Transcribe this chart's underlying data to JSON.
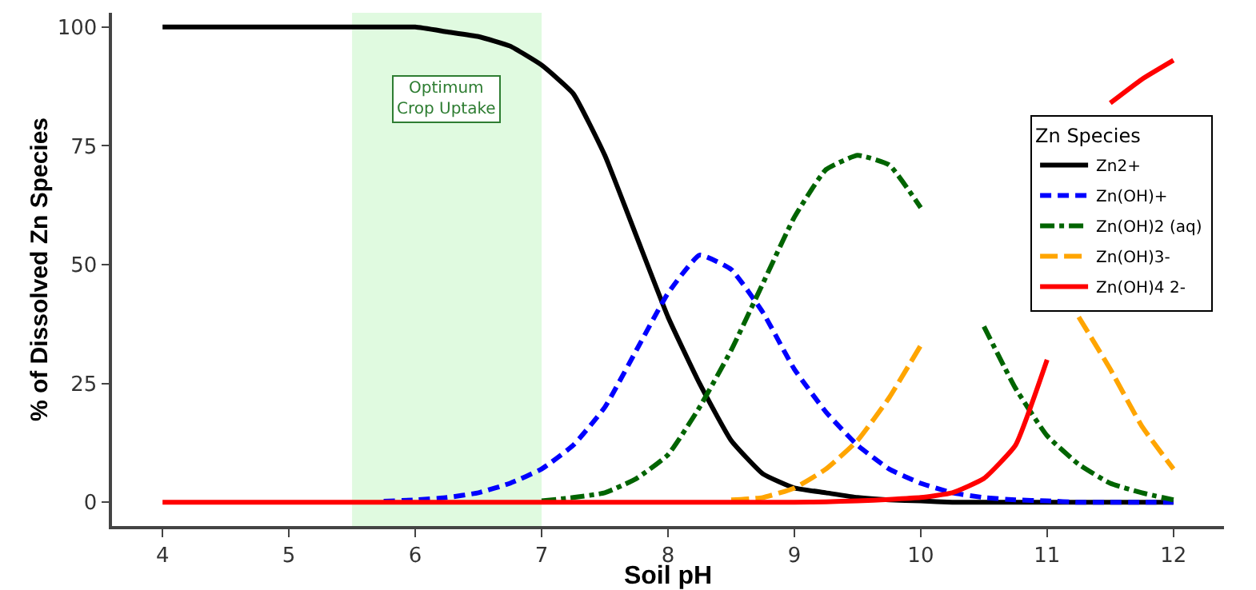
{
  "chart_data": {
    "type": "line",
    "xlabel": "Soil pH",
    "ylabel": "% of Dissolved Zn Species",
    "legend_title": "Zn Species",
    "legend": "top right",
    "grid": false,
    "x": [
      4,
      4.25,
      4.5,
      4.75,
      5,
      5.25,
      5.5,
      5.75,
      6,
      6.25,
      6.5,
      6.75,
      7,
      7.25,
      7.5,
      7.75,
      8,
      8.25,
      8.5,
      8.75,
      9,
      9.25,
      9.5,
      9.75,
      10,
      10.25,
      10.5,
      10.75,
      11,
      11.25,
      11.5,
      11.75,
      12
    ],
    "xlim": [
      3.6,
      12.4
    ],
    "xticks": [
      4,
      5,
      6,
      7,
      8,
      9,
      10,
      11,
      12
    ],
    "ylim": [
      -5,
      103
    ],
    "yticks": [
      0,
      25,
      50,
      75,
      100
    ],
    "bands": [
      {
        "axis": "x",
        "from": 5.5,
        "to": 7,
        "label": "Optimum\nCrop Uptake",
        "color": "#e0fae0"
      }
    ],
    "series": [
      {
        "name": "Zn2+",
        "color": "#000000",
        "line_style": "solid",
        "values": [
          100,
          100,
          100,
          100,
          100,
          100,
          100,
          100,
          100,
          99,
          98,
          96,
          92,
          86,
          73,
          56,
          39,
          25,
          13,
          6,
          3,
          2,
          1,
          0.5,
          0.3,
          0,
          0,
          0,
          0,
          0,
          0,
          0,
          0
        ]
      },
      {
        "name": "Zn(OH)+",
        "color": "#0000ff",
        "line_style": "dash",
        "values": [
          null,
          null,
          null,
          null,
          null,
          null,
          null,
          0.2,
          0.5,
          1,
          2,
          4,
          7,
          12,
          20,
          32,
          44,
          52,
          49,
          40,
          28,
          19,
          12,
          7,
          4,
          2,
          1,
          0.5,
          0.3,
          0,
          0,
          0,
          0
        ]
      },
      {
        "name": "Zn(OH)2 (aq)",
        "color": "#006400",
        "line_style": "dashdot",
        "values": [
          null,
          null,
          null,
          null,
          null,
          null,
          null,
          null,
          null,
          null,
          null,
          null,
          0.3,
          1,
          2,
          5,
          10,
          20,
          32,
          46,
          60,
          70,
          73,
          71,
          62,
          null,
          37,
          24,
          14,
          8,
          4,
          2,
          0.5
        ]
      },
      {
        "name": "Zn(OH)3-",
        "color": "#ffa500",
        "line_style": "longdash",
        "values": [
          null,
          null,
          null,
          null,
          null,
          null,
          null,
          null,
          null,
          null,
          null,
          null,
          null,
          null,
          null,
          null,
          null,
          null,
          0.5,
          1,
          3,
          7,
          13,
          22,
          33,
          null,
          null,
          null,
          null,
          39,
          28,
          16,
          7
        ]
      },
      {
        "name": "Zn(OH)4 2-",
        "color": "#ff0000",
        "line_style": "solid",
        "values": [
          0,
          0,
          0,
          0,
          0,
          0,
          0,
          0,
          0,
          0,
          0,
          0,
          0,
          0,
          0,
          0,
          0,
          0,
          0,
          0,
          0,
          0.1,
          0.3,
          0.6,
          1,
          2,
          5,
          12,
          30,
          null,
          84,
          89,
          93
        ]
      }
    ]
  }
}
